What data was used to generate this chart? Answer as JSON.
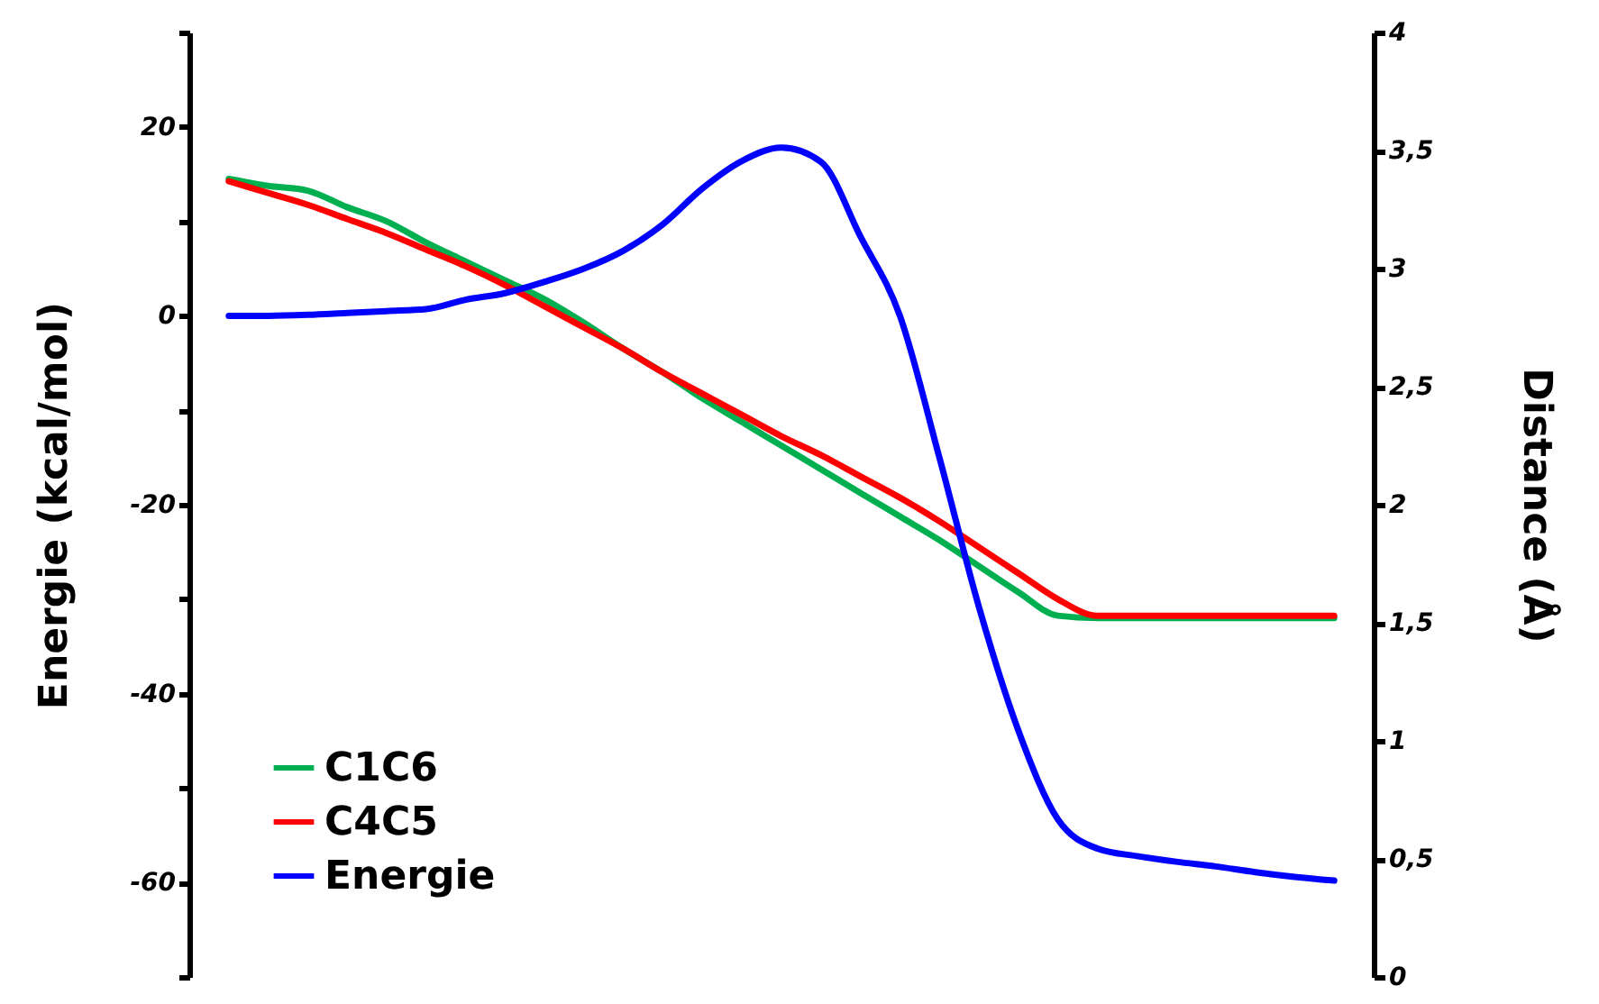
{
  "chart_data": {
    "type": "line",
    "ylabel": "Energie (kcal/mol)",
    "y2label": "Distance (Å)",
    "categories": [
      null,
      null,
      null,
      null,
      null,
      null,
      null,
      null,
      null,
      null,
      null,
      null,
      null,
      null,
      null,
      null,
      null,
      null,
      null,
      null,
      null,
      null,
      null,
      null,
      null,
      null,
      null,
      null,
      null
    ],
    "ylim": [
      -70,
      30
    ],
    "yticks": [
      {
        "value": -70,
        "label": null
      },
      -60,
      {
        "value": -50,
        "label": null
      },
      -40,
      {
        "value": -30,
        "label": null
      },
      -20,
      {
        "value": -10,
        "label": null
      },
      0,
      {
        "value": 10,
        "label": null
      },
      20,
      {
        "value": 30,
        "label": null
      }
    ],
    "y2lim": [
      0,
      4
    ],
    "y2ticks": [
      0,
      {
        "value": 0.5,
        "label": "0,5"
      },
      1,
      {
        "value": 1.5,
        "label": "1,5"
      },
      2,
      {
        "value": 2.5,
        "label": "2,5"
      },
      3,
      {
        "value": 3.5,
        "label": "3,5"
      },
      4
    ],
    "series": [
      {
        "name": "C1C6",
        "color": "#00b050",
        "axis": "y2",
        "values": [
          3.38,
          3.35,
          3.33,
          3.26,
          3.2,
          3.11,
          3.03,
          2.95,
          2.87,
          2.77,
          2.66,
          2.56,
          2.45,
          2.35,
          2.25,
          2.15,
          2.05,
          1.95,
          1.85,
          1.74,
          1.63,
          1.53,
          1.52,
          1.52,
          1.52,
          1.52,
          1.52,
          1.52,
          1.52
        ]
      },
      {
        "name": "C4C5",
        "color": "#ff0000",
        "axis": "y2",
        "values": [
          3.37,
          3.32,
          3.27,
          3.21,
          3.15,
          3.08,
          3.01,
          2.93,
          2.84,
          2.75,
          2.66,
          2.56,
          2.47,
          2.38,
          2.29,
          2.21,
          2.12,
          2.03,
          1.93,
          1.82,
          1.71,
          1.6,
          1.53,
          1.53,
          1.53,
          1.53,
          1.53,
          1.53,
          1.53
        ]
      },
      {
        "name": "Energie",
        "color": "#0000ff",
        "values": [
          0,
          0,
          0.1,
          0.3,
          0.5,
          0.7,
          1.7,
          2.4,
          3.6,
          5.0,
          6.9,
          9.7,
          13.5,
          16.4,
          17.8,
          16.3,
          8.4,
          0,
          -15,
          -30.8,
          -43.9,
          -53.3,
          -56.4,
          -57.2,
          -57.8,
          -58.3,
          -58.9,
          -59.4,
          -59.8
        ]
      }
    ],
    "legend": "bottom left",
    "grid": false,
    "line_style": "solid",
    "marker": "none"
  }
}
